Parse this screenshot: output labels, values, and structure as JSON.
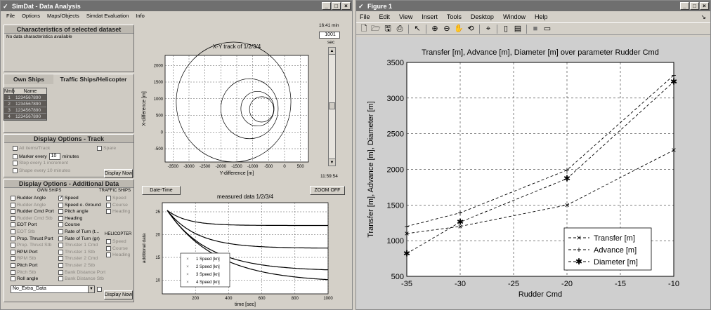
{
  "simdat": {
    "title": "SimDat - Data Analysis",
    "menu": [
      "File",
      "Options",
      "Maps/Objects",
      "Simdat Evaluation",
      "Info"
    ],
    "characteristics": {
      "header": "Characteristics of selected dataset",
      "text": "No data characteristics available"
    },
    "ships": {
      "own_label": "Own Ships",
      "traffic_label": "Traffic Ships/Helicopter",
      "col_nmb": "Nmb",
      "col_name": "Name",
      "rows": [
        {
          "n": "1",
          "name": "1234567890"
        },
        {
          "n": "2",
          "name": "1234567890"
        },
        {
          "n": "3",
          "name": "1234567890"
        },
        {
          "n": "4",
          "name": "1234567890"
        }
      ]
    },
    "track": {
      "header": "Display Options - Track",
      "all_items": "All items/Track",
      "spare": "Spare",
      "marker_every": "Marker every",
      "marker_value": "10",
      "minutes": "minutes",
      "step_every": "Step every 1 increment",
      "shape_every": "Shape every 10 minutes",
      "display_now": "Display Now"
    },
    "additional": {
      "header": "Display Options - Additional Data",
      "own_ships_label": "OWN SHIPS",
      "traffic_label": "TRAFFIC SHIPS",
      "helicopter_label": "HELICOPTER",
      "col1": [
        {
          "label": "Rudder Angle",
          "en": true
        },
        {
          "label": "Rudder Angle",
          "en": false
        },
        {
          "label": "Rudder Cmd Port",
          "en": true
        },
        {
          "label": "Rudder Cmd Stb",
          "en": false
        },
        {
          "label": "EOT Port",
          "en": true
        },
        {
          "label": "EOT Stb",
          "en": false
        },
        {
          "label": "Prop. Thrust Port",
          "en": true
        },
        {
          "label": "Prop. Thrust Stb",
          "en": false
        },
        {
          "label": "RPM Port",
          "en": true
        },
        {
          "label": "RPM Stb",
          "en": false
        },
        {
          "label": "Pitch Port",
          "en": true
        },
        {
          "label": "Pitch Stb",
          "en": false
        },
        {
          "label": "Roll angle",
          "en": true
        }
      ],
      "col2": [
        {
          "label": "Speed",
          "en": true,
          "checked": true
        },
        {
          "label": "Speed o. Ground",
          "en": true
        },
        {
          "label": "Pitch angle",
          "en": true
        },
        {
          "label": "Heading",
          "en": true
        },
        {
          "label": "Course",
          "en": true
        },
        {
          "label": "Rate of Turn (t...",
          "en": true
        },
        {
          "label": "Rate of Turn (gr)",
          "en": true
        },
        {
          "label": "Thruster 1 Cmd",
          "en": false
        },
        {
          "label": "Thruster 1 Stb",
          "en": false
        },
        {
          "label": "Thruster 2 Cmd",
          "en": false
        },
        {
          "label": "Thruster 2 Stb",
          "en": false
        },
        {
          "label": "Bank Distance Port",
          "en": false
        },
        {
          "label": "Bank Distance Stb",
          "en": false
        }
      ],
      "col3a": [
        "Speed",
        "Course",
        "Heading"
      ],
      "col3b": [
        "Speed",
        "Course",
        "Heading"
      ],
      "select_value": "No_Extra_Data",
      "display_now": "Display Now"
    },
    "time_top": "16:41 min",
    "time_value": "1001",
    "time_unit": "sec",
    "time_bottom": "11:59:54",
    "date_time_btn": "Date-Time",
    "zoom_btn": "ZOOM OFF",
    "xy_plot": {
      "title": "X-Y track of 1/2/3/4",
      "xlabel": "Y-difference [m]",
      "ylabel": "X-difference [m]",
      "xticks": [
        "-3500",
        "-3000",
        "-2500",
        "-2000",
        "-1500",
        "-1000",
        "-500",
        "0",
        "500"
      ],
      "yticks": [
        "2000",
        "1500",
        "1000",
        "500",
        "0",
        "-500"
      ]
    },
    "measured_plot": {
      "title": "measured data 1/2/3/4",
      "xlabel": "time [sec]",
      "ylabel": "additional data",
      "xticks": [
        "200",
        "400",
        "600",
        "800",
        "1000"
      ],
      "yticks": [
        "25",
        "20",
        "15",
        "10"
      ],
      "legend": [
        "1 Speed [kn]",
        "2 Speed [kn]",
        "3 Speed [kn]",
        "4 Speed [kn]"
      ]
    }
  },
  "figure": {
    "title": "Figure 1",
    "menu": [
      "File",
      "Edit",
      "View",
      "Insert",
      "Tools",
      "Desktop",
      "Window",
      "Help"
    ],
    "dock": "↘",
    "toolbar_icons": [
      "new-icon",
      "open-icon",
      "save-icon",
      "print-icon",
      "arrow-icon",
      "zoom-in-icon",
      "zoom-out-icon",
      "pan-icon",
      "rotate-icon",
      "datacursor-icon",
      "colorbar-icon",
      "legend-icon",
      "hide-plot-icon",
      "show-plot-icon"
    ]
  },
  "chart_data": {
    "type": "line",
    "title": "Transfer [m], Advance [m], Diameter [m] over parameter Rudder Cmd",
    "xlabel": "Rudder Cmd",
    "ylabel": "Transfer [m], Advance [m], Diameter [m]",
    "xlim": [
      -35,
      -10
    ],
    "ylim": [
      500,
      3500
    ],
    "xticks": [
      -35,
      -30,
      -25,
      -20,
      -15,
      -10
    ],
    "yticks": [
      500,
      1000,
      1500,
      2000,
      2500,
      3000,
      3500
    ],
    "grid": true,
    "legend_position": "bottom-right",
    "x": [
      -35,
      -30,
      -20,
      -10
    ],
    "series": [
      {
        "name": "Transfer [m]",
        "marker": "x",
        "values": [
          1100,
          1200,
          1500,
          2270
        ]
      },
      {
        "name": "Advance [m]",
        "marker": "+",
        "values": [
          1200,
          1390,
          1990,
          3320
        ]
      },
      {
        "name": "Diameter [m]",
        "marker": "*",
        "values": [
          820,
          1260,
          1870,
          3230
        ]
      }
    ]
  }
}
